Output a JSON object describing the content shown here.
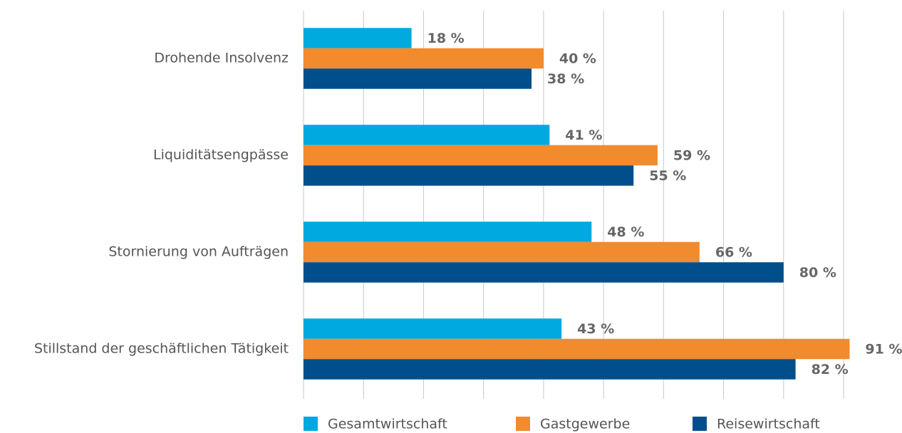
{
  "chart_data": {
    "type": "bar",
    "orientation": "horizontal",
    "categories": [
      "Drohende Insolvenz",
      "Liquiditätsengpässe",
      "Stornierung von Aufträgen",
      "Stillstand der geschäftlichen Tätigkeit"
    ],
    "series": [
      {
        "name": "Gesamtwirtschaft",
        "color": "#00a9e0",
        "values": [
          18,
          41,
          48,
          43
        ],
        "value_labels": [
          "18 %",
          "41 %",
          "48 %",
          "43 %"
        ]
      },
      {
        "name": "Gastgewerbe",
        "color": "#f28a2e",
        "values": [
          40,
          59,
          66,
          91
        ],
        "value_labels": [
          "40 %",
          "59 %",
          "66 %",
          "91 %"
        ]
      },
      {
        "name": "Reisewirtschaft",
        "color": "#004f8c",
        "values": [
          38,
          55,
          80,
          82
        ],
        "value_labels": [
          "38 %",
          "55 %",
          "80 %",
          "82 %"
        ]
      }
    ],
    "xlim": [
      0,
      90
    ],
    "xticks": [
      0,
      10,
      20,
      30,
      40,
      50,
      60,
      70,
      80,
      90
    ],
    "grid": true,
    "legend": "bottom"
  }
}
